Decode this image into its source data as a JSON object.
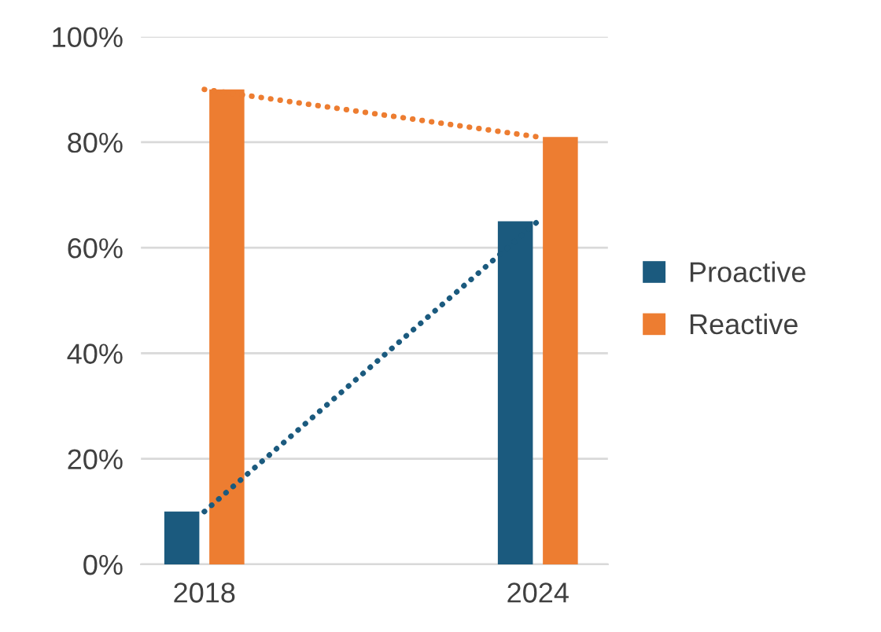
{
  "chart_data": {
    "type": "bar",
    "categories": [
      "2018",
      "2024"
    ],
    "series": [
      {
        "name": "Proactive",
        "color": "#1b5a7e",
        "values": [
          10,
          65
        ]
      },
      {
        "name": "Reactive",
        "color": "#ed7d31",
        "values": [
          90,
          81
        ]
      },
      {
        "type": "line",
        "color": "#1b5a7e",
        "values": [
          10,
          65
        ],
        "line_style": "dotted"
      },
      {
        "type": "line",
        "color": "#ed7d31",
        "values": [
          90,
          81
        ],
        "line_style": "dotted"
      }
    ],
    "ylim": [
      0,
      100
    ],
    "yticks": [
      {
        "value": 0,
        "label": "0%"
      },
      {
        "value": 20,
        "label": "20%"
      },
      {
        "value": 40,
        "label": "40%"
      },
      {
        "value": 60,
        "label": "60%"
      },
      {
        "value": 80,
        "label": "80%"
      },
      {
        "value": 100,
        "label": "100%"
      }
    ],
    "grid": "y",
    "legend": "right"
  }
}
